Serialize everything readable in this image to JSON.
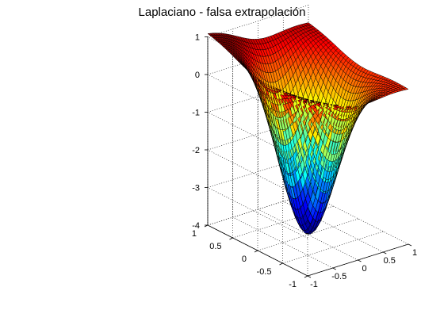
{
  "chart_data": {
    "type": "surface",
    "title": "Laplaciano - falsa extrapolación",
    "xlabel": "",
    "ylabel": "",
    "zlabel": "",
    "xlim": [
      -1,
      1
    ],
    "ylim": [
      -1,
      1
    ],
    "zlim": [
      -4,
      1
    ],
    "x_ticks": [
      "-1",
      "-0.5",
      "0",
      "0.5",
      "1"
    ],
    "y_ticks": [
      "-1",
      "-0.5",
      "0",
      "0.5",
      "1"
    ],
    "z_ticks": [
      "-4",
      "-3",
      "-2",
      "-1",
      "0",
      "1"
    ],
    "grid": true,
    "colormap": "jet",
    "mesh_edge_color": "#000000",
    "surface_samples": {
      "center": {
        "x": 0,
        "y": 0,
        "z": -4
      },
      "mid_x_edge": {
        "x": 1,
        "y": 0,
        "z": 0
      },
      "corner_far": {
        "x": -1,
        "y": 1,
        "z": 0.8
      },
      "corner_left": {
        "x": -1,
        "y": -1,
        "z": 0.5
      }
    }
  }
}
